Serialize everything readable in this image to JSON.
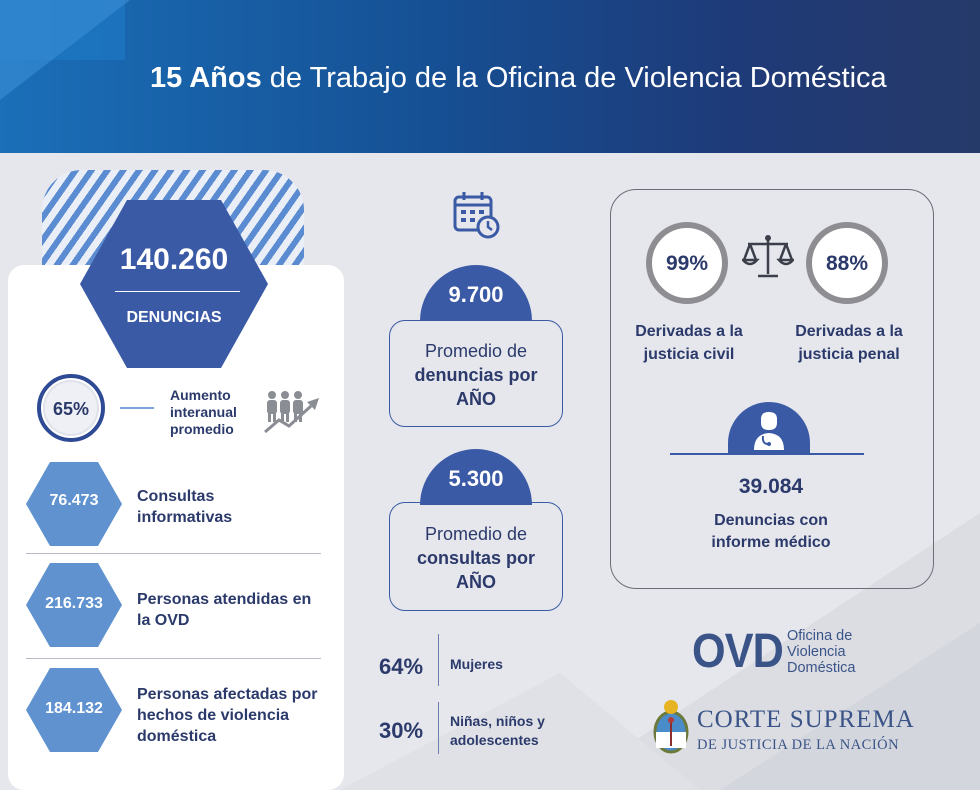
{
  "header": {
    "title_bold": "15 Años",
    "title_rest": " de Trabajo de la Oficina de Violencia Doméstica"
  },
  "left": {
    "big_value": "140.260",
    "big_label": "DENUNCIAS",
    "growth_pct": "65%",
    "growth_label": "Aumento interanual promedio",
    "stats": [
      {
        "value": "76.473",
        "label": "Consultas informativas"
      },
      {
        "value": "216.733",
        "label": "Personas atendidas en la OVD"
      },
      {
        "value": "184.132",
        "label": "Personas afectadas por hechos de violencia doméstica"
      }
    ]
  },
  "middle": {
    "avg_denuncias": {
      "value": "9.700",
      "pre": "Promedio de",
      "bold": "denuncias por AÑO"
    },
    "avg_consultas": {
      "value": "5.300",
      "pre": "Promedio de",
      "bold": "consultas por AÑO"
    },
    "breakdown": [
      {
        "pct": "64%",
        "label": "Mujeres"
      },
      {
        "pct": "30%",
        "label": "Niñas, niños y adolescentes"
      }
    ]
  },
  "right": {
    "civil": {
      "pct": "99%",
      "label": "Derivadas a la justicia civil"
    },
    "penal": {
      "pct": "88%",
      "label": "Derivadas a la justicia penal"
    },
    "medical_value": "39.084",
    "medical_label": "Denuncias con informe médico"
  },
  "logos": {
    "ovd_mark": "OVD",
    "ovd_text": [
      "Oficina de",
      "Violencia",
      "Doméstica"
    ],
    "cs_line1": "CORTE SUPREMA",
    "cs_line2": "DE JUSTICIA DE LA NACIÓN"
  },
  "colors": {
    "primary": "#3b5aa6",
    "light_hex": "#5f92cf",
    "text": "#2b3a6b"
  }
}
